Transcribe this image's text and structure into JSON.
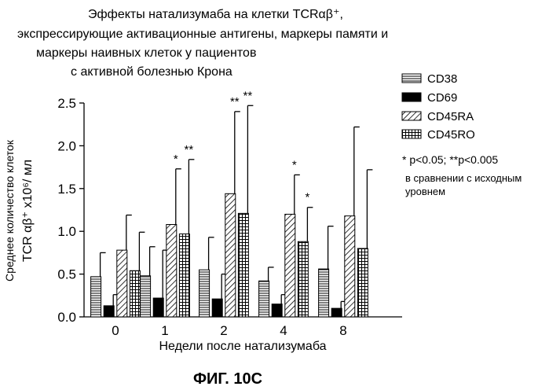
{
  "chart_data": {
    "type": "bar",
    "title_lines": [
      "Эффекты натализумаба на клетки TCRαβ⁺,",
      "экспрессирующие активационные антигены, маркеры памяти и",
      "маркеры наивных клеток у пациентов",
      "с активной болезнью Крона"
    ],
    "xlabel": "Недели после натализумаба",
    "ylabel_line1": "Среднее количество клеток",
    "ylabel_line2": "TCR αβ⁺ x10⁶/ мл",
    "categories": [
      "0",
      "1",
      "2",
      "4",
      "8"
    ],
    "ylim": [
      0,
      2.5
    ],
    "yticks": [
      "0.0",
      "0.5",
      "1.0",
      "1.5",
      "2.0",
      "2.5"
    ],
    "series": [
      {
        "name": "CD38",
        "pattern": "hlines",
        "values": [
          0.47,
          0.48,
          0.55,
          0.42,
          0.56
        ],
        "errors": [
          0.28,
          0.34,
          0.38,
          0.16,
          0.5
        ]
      },
      {
        "name": "CD69",
        "pattern": "solid",
        "values": [
          0.13,
          0.22,
          0.21,
          0.15,
          0.1
        ],
        "errors": [
          0.13,
          0.56,
          0.29,
          0.11,
          0.08
        ]
      },
      {
        "name": "CD45RA",
        "pattern": "diag",
        "values": [
          0.78,
          1.08,
          1.44,
          1.2,
          1.18
        ],
        "errors": [
          0.41,
          0.65,
          0.96,
          0.46,
          1.04
        ]
      },
      {
        "name": "CD45RO",
        "pattern": "grid",
        "values": [
          0.54,
          0.97,
          1.21,
          0.88,
          0.8
        ],
        "errors": [
          0.45,
          0.87,
          1.26,
          0.4,
          0.92
        ]
      }
    ],
    "significance": [
      {
        "category": "1",
        "series": "CD45RA",
        "label": "*"
      },
      {
        "category": "1",
        "series": "CD45RO",
        "label": "**"
      },
      {
        "category": "2",
        "series": "CD45RA",
        "label": "**"
      },
      {
        "category": "2",
        "series": "CD45RO",
        "label": "**"
      },
      {
        "category": "4",
        "series": "CD45RA",
        "label": "*"
      },
      {
        "category": "4",
        "series": "CD45RO",
        "label": "*"
      }
    ],
    "note_line1": "* p<0.05; **p<0.005",
    "note_line2": "в сравнении с исходным",
    "note_line3": "уровнем",
    "figure_label": "ФИГ. 10С"
  }
}
